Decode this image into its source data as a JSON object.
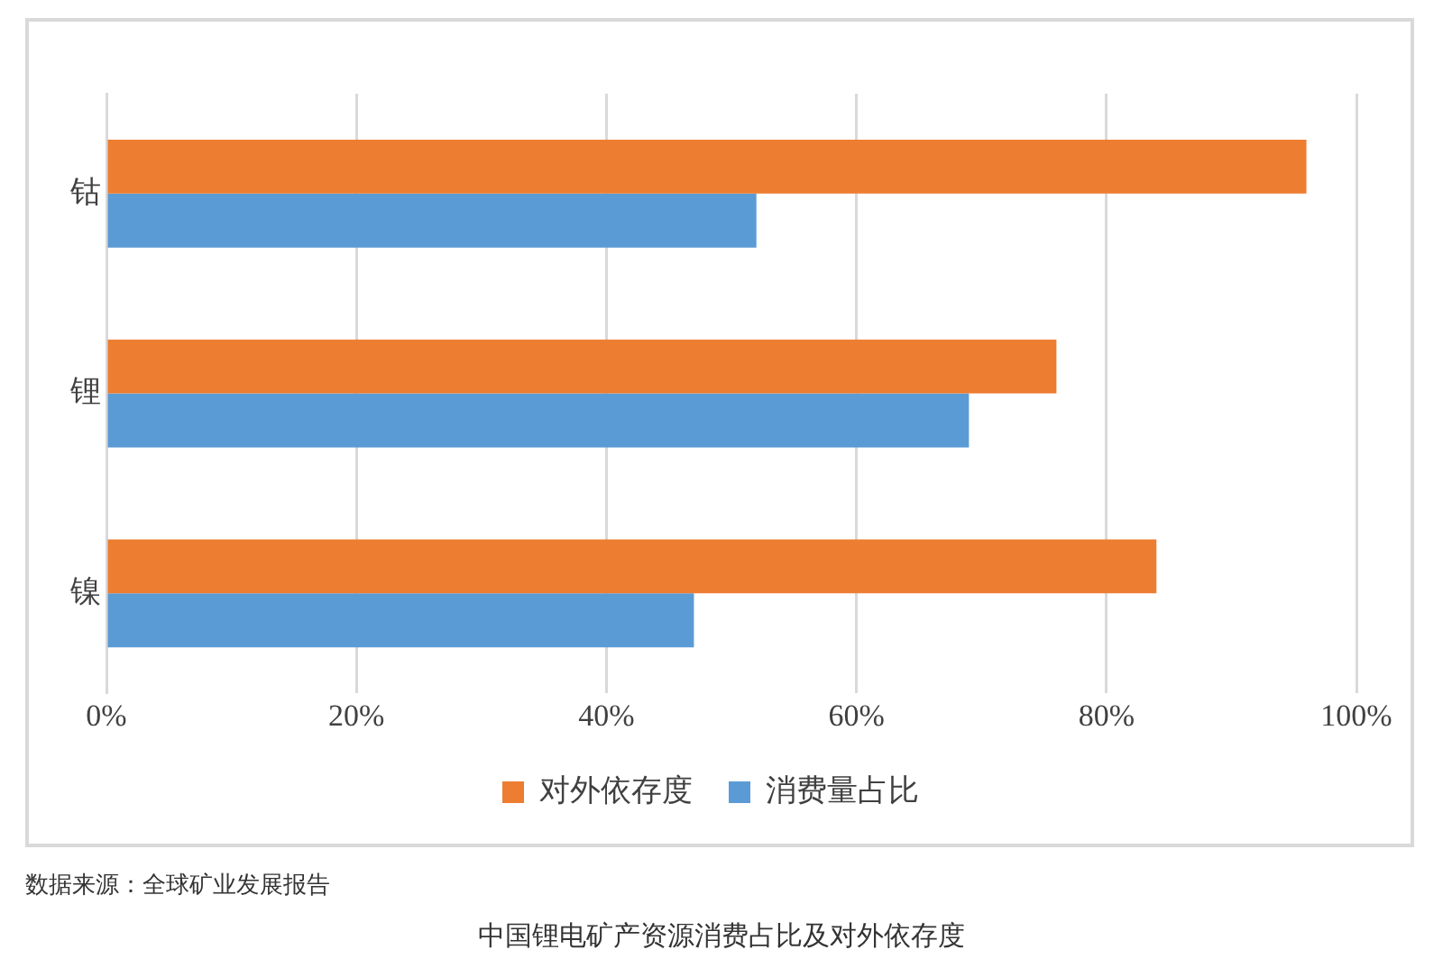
{
  "chart_data": {
    "type": "bar",
    "orientation": "horizontal",
    "title": "中国锂电矿产资源消费占比及对外依存度",
    "categories": [
      "钴",
      "锂",
      "镍"
    ],
    "series": [
      {
        "name": "对外依存度",
        "color": "#ed7d31",
        "values": [
          96,
          76,
          84
        ]
      },
      {
        "name": "消费量占比",
        "color": "#5b9bd5",
        "values": [
          52,
          69,
          47
        ]
      }
    ],
    "xlim": [
      0,
      100
    ],
    "xticks": [
      {
        "value": 0,
        "label": "0%"
      },
      {
        "value": 20,
        "label": "20%"
      },
      {
        "value": 40,
        "label": "40%"
      },
      {
        "value": 60,
        "label": "60%"
      },
      {
        "value": 80,
        "label": "80%"
      },
      {
        "value": 100,
        "label": "100%"
      }
    ],
    "grid": "x",
    "legend": "bottom",
    "annotations": [
      "数据来源：全球矿业发展报告"
    ]
  }
}
